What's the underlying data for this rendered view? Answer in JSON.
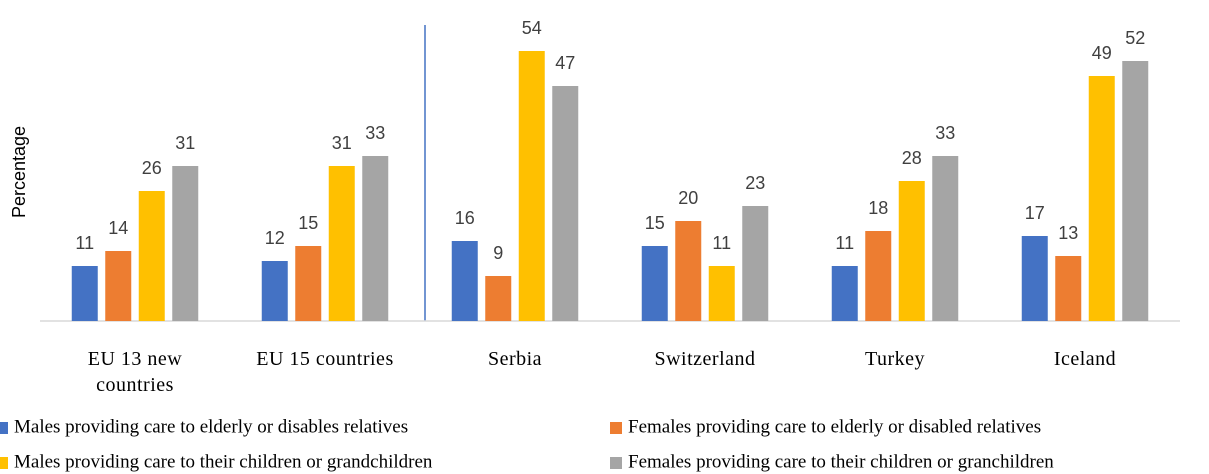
{
  "chart_data": {
    "type": "bar",
    "y_label": "Percentage",
    "categories": [
      "EU 13 new countries",
      "EU 15 countries",
      "Serbia",
      "Switzerland",
      "Turkey",
      "Iceland"
    ],
    "series": [
      {
        "name": "Males providing care to elderly or disables relatives",
        "color": "#4472c4",
        "values": [
          11,
          12,
          16,
          15,
          11,
          17
        ]
      },
      {
        "name": "Females providing care to elderly or disabled relatives",
        "color": "#ed7d31",
        "values": [
          14,
          15,
          9,
          20,
          18,
          13
        ]
      },
      {
        "name": "Males providing care to their children or grandchildren",
        "color": "#ffc000",
        "values": [
          26,
          31,
          54,
          11,
          28,
          49
        ]
      },
      {
        "name": "Females providing care to their children or granchildren",
        "color": "#a5a5a5",
        "values": [
          31,
          33,
          47,
          23,
          33,
          52
        ]
      }
    ],
    "ylim": [
      0,
      60
    ],
    "legend": "bottom"
  }
}
